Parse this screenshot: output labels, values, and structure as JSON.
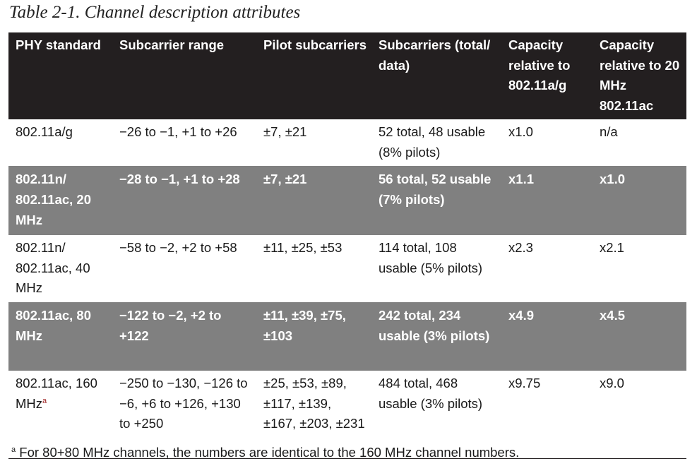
{
  "caption": "Table 2-1. Channel description attributes",
  "headers": [
    "PHY standard",
    "Subcarrier range",
    "Pilot subcarriers",
    "Subcarriers (total/ data)",
    "Capacity relative to 802.11a/g",
    "Capacity relative to 20 MHz 802.11ac"
  ],
  "rows": [
    {
      "phy": "802.11a/g",
      "phy_note": "",
      "range": "−26 to −1, +1 to +26",
      "pilots": "±7, ±21",
      "subcarriers": "52 total, 48 usable (8% pilots)",
      "cap_ag": "x1.0",
      "cap_20": "n/a"
    },
    {
      "phy": "802.11n/ 802.11ac, 20 MHz",
      "phy_note": "",
      "range": "−28 to −1, +1 to +28",
      "pilots": "±7, ±21",
      "subcarriers": "56 total, 52 usable (7% pilots)",
      "cap_ag": "x1.1",
      "cap_20": "x1.0"
    },
    {
      "phy": "802.11n/ 802.11ac, 40 MHz",
      "phy_note": "",
      "range": "−58 to −2, +2 to +58",
      "pilots": "±11, ±25, ±53",
      "subcarriers": "114 total, 108 usable (5% pilots)",
      "cap_ag": "x2.3",
      "cap_20": "x2.1"
    },
    {
      "phy": "802.11ac, 80 MHz",
      "phy_note": "",
      "range": "−122 to −2, +2 to +122",
      "pilots": "±11, ±39, ±75, ±103",
      "subcarriers": "242 total, 234 usable (3% pilots)",
      "cap_ag": "x4.9",
      "cap_20": "x4.5"
    },
    {
      "phy": "802.11ac, 160 MHz",
      "phy_note": "a",
      "range": "−250 to −130, −126 to −6, +6 to +126, +130 to +250",
      "pilots": "±25, ±53, ±89, ±117, ±139, ±167, ±203, ±231",
      "subcarriers": "484 total, 468 usable (3% pilots)",
      "cap_ag": "x9.75",
      "cap_20": "x9.0"
    }
  ],
  "footnote": {
    "marker": "a",
    "text": "For 80+80 MHz channels, the numbers are identical to the 160 MHz channel numbers."
  },
  "colors": {
    "header_bg": "#231f20",
    "shaded_row_bg": "#808080",
    "footnote_marker": "#9b1c1c"
  }
}
